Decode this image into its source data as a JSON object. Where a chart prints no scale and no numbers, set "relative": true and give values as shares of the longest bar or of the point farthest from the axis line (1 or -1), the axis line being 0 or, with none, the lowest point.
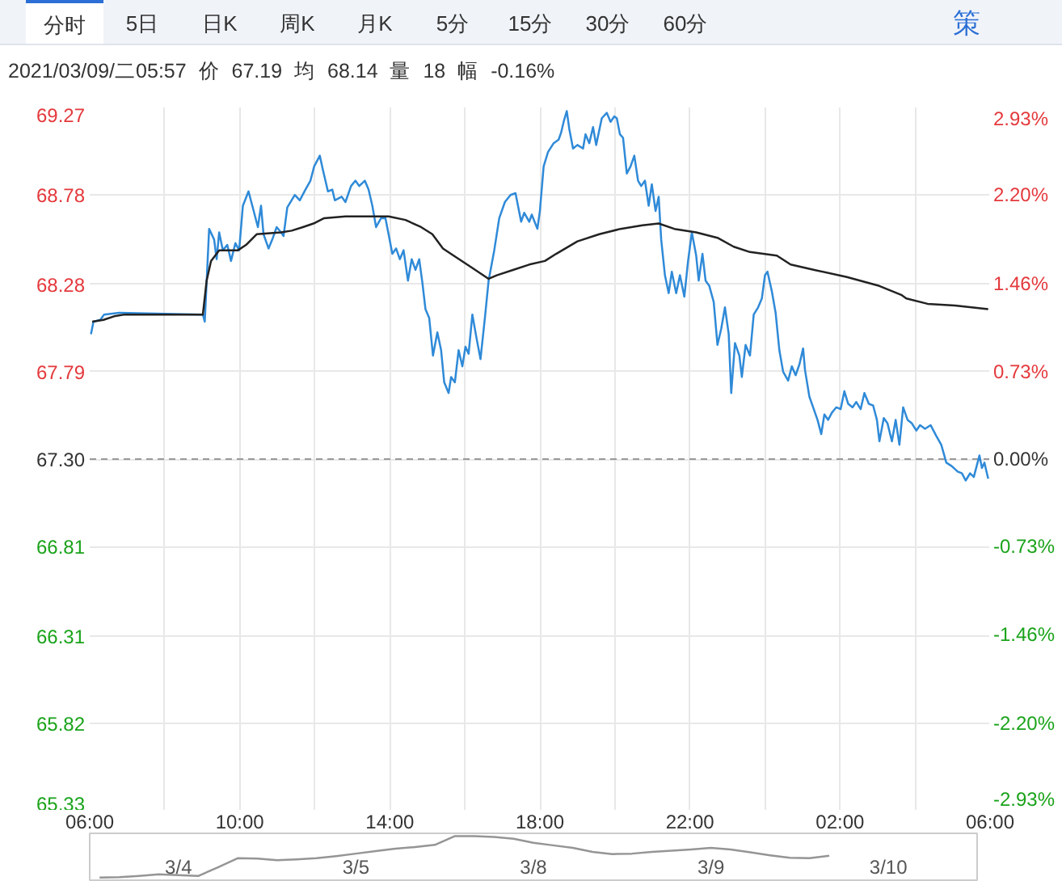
{
  "chart_data": [
    {
      "type": "line",
      "title": "2021/03/09/二05:57 价 67.19 均 68.14 量 18 幅 -0.16%",
      "annotations": [
        "分时",
        "5日",
        "日K",
        "周K",
        "月K",
        "5分",
        "15分",
        "30分",
        "60分",
        "策"
      ],
      "xlim": [
        "2021-03-08T06:00",
        "2021-03-09T06:00"
      ],
      "xticks": [
        {
          "value": "2021-03-08T06:00",
          "label": "06:00"
        },
        {
          "value": "2021-03-08T08:00",
          "label": null
        },
        {
          "value": "2021-03-08T10:00",
          "label": "10:00"
        },
        {
          "value": "2021-03-08T12:00",
          "label": null
        },
        {
          "value": "2021-03-08T14:00",
          "label": "14:00"
        },
        {
          "value": "2021-03-08T16:00",
          "label": null
        },
        {
          "value": "2021-03-08T18:00",
          "label": "18:00"
        },
        {
          "value": "2021-03-08T20:00",
          "label": null
        },
        {
          "value": "2021-03-08T22:00",
          "label": "22:00"
        },
        {
          "value": "2021-03-09T00:00",
          "label": null
        },
        {
          "value": "2021-03-09T02:00",
          "label": "02:00"
        },
        {
          "value": "2021-03-09T04:00",
          "label": null
        },
        {
          "value": "2021-03-09T06:00",
          "label": "06:00"
        }
      ],
      "ylim": [
        65.33,
        69.27
      ],
      "yticks": [
        65.33,
        65.82,
        66.31,
        66.81,
        {
          "value": 67.3,
          "label": "67.30"
        },
        67.79,
        68.28,
        68.78,
        69.27
      ],
      "y2lim": [
        -2.93,
        2.93
      ],
      "y2ticks": [
        {
          "value": -2.93,
          "label": "-2.93%"
        },
        {
          "value": -2.2,
          "label": "-2.20%"
        },
        {
          "value": -1.46,
          "label": "-1.46%"
        },
        {
          "value": -0.73,
          "label": "-0.73%"
        },
        {
          "value": 0,
          "label": "0.00%"
        },
        {
          "value": 0.73,
          "label": "0.73%"
        },
        {
          "value": 1.46,
          "label": "1.46%"
        },
        {
          "value": 2.2,
          "label": "2.20%"
        },
        {
          "value": 2.93,
          "label": "2.93%"
        }
      ],
      "grid": true,
      "ref_lines": [
        {
          "axis": "y",
          "value": 67.3,
          "color": "#999999",
          "line_style": "dashed"
        }
      ],
      "series": [
        {
          "color": "#2f8ad8",
          "x": [
            "2021-03-08T06:02",
            "2021-03-08T06:06",
            "2021-03-08T06:17",
            "2021-03-08T06:23",
            "2021-03-08T06:47",
            "2021-03-08T09:01",
            "2021-03-08T09:04",
            "2021-03-08T09:11",
            "2021-03-08T09:19",
            "2021-03-08T09:23",
            "2021-03-08T09:27",
            "2021-03-08T09:33",
            "2021-03-08T09:40",
            "2021-03-08T09:46",
            "2021-03-08T09:53",
            "2021-03-08T09:59",
            "2021-03-08T10:05",
            "2021-03-08T10:14",
            "2021-03-08T10:23",
            "2021-03-08T10:29",
            "2021-03-08T10:34",
            "2021-03-08T10:38",
            "2021-03-08T10:46",
            "2021-03-08T10:53",
            "2021-03-08T10:59",
            "2021-03-08T11:06",
            "2021-03-08T11:10",
            "2021-03-08T11:16",
            "2021-03-08T11:28",
            "2021-03-08T11:36",
            "2021-03-08T11:45",
            "2021-03-08T11:53",
            "2021-03-08T11:59",
            "2021-03-08T12:08",
            "2021-03-08T12:13",
            "2021-03-08T12:21",
            "2021-03-08T12:28",
            "2021-03-08T12:32",
            "2021-03-08T12:43",
            "2021-03-08T12:49",
            "2021-03-08T12:58",
            "2021-03-08T13:05",
            "2021-03-08T13:11",
            "2021-03-08T13:20",
            "2021-03-08T13:26",
            "2021-03-08T13:32",
            "2021-03-08T13:38",
            "2021-03-08T13:46",
            "2021-03-08T13:53",
            "2021-03-08T13:58",
            "2021-03-08T14:04",
            "2021-03-08T14:10",
            "2021-03-08T14:16",
            "2021-03-08T14:22",
            "2021-03-08T14:29",
            "2021-03-08T14:35",
            "2021-03-08T14:41",
            "2021-03-08T14:47",
            "2021-03-08T14:52",
            "2021-03-08T14:57",
            "2021-03-08T15:03",
            "2021-03-08T15:09",
            "2021-03-08T15:16",
            "2021-03-08T15:22",
            "2021-03-08T15:27",
            "2021-03-08T15:34",
            "2021-03-08T15:38",
            "2021-03-08T15:44",
            "2021-03-08T15:50",
            "2021-03-08T15:56",
            "2021-03-08T16:01",
            "2021-03-08T16:06",
            "2021-03-08T16:12",
            "2021-03-08T16:18",
            "2021-03-08T16:25",
            "2021-03-08T16:32",
            "2021-03-08T16:38",
            "2021-03-08T16:47",
            "2021-03-08T16:55",
            "2021-03-08T17:04",
            "2021-03-08T17:13",
            "2021-03-08T17:21",
            "2021-03-08T17:30",
            "2021-03-08T17:35",
            "2021-03-08T17:43",
            "2021-03-08T17:47",
            "2021-03-08T17:56",
            "2021-03-08T18:00",
            "2021-03-08T18:06",
            "2021-03-08T18:13",
            "2021-03-08T18:22",
            "2021-03-08T18:30",
            "2021-03-08T18:34",
            "2021-03-08T18:38",
            "2021-03-08T18:43",
            "2021-03-08T18:47",
            "2021-03-08T18:53",
            "2021-03-08T19:00",
            "2021-03-08T19:09",
            "2021-03-08T19:13",
            "2021-03-08T19:19",
            "2021-03-08T19:25",
            "2021-03-08T19:30",
            "2021-03-08T19:39",
            "2021-03-08T19:47",
            "2021-03-08T19:53",
            "2021-03-08T19:59",
            "2021-03-08T20:03",
            "2021-03-08T20:08",
            "2021-03-08T20:13",
            "2021-03-08T20:19",
            "2021-03-08T20:25",
            "2021-03-08T20:31",
            "2021-03-08T20:37",
            "2021-03-08T20:42",
            "2021-03-08T20:48",
            "2021-03-08T20:54",
            "2021-03-08T20:59",
            "2021-03-08T21:05",
            "2021-03-08T21:10",
            "2021-03-08T21:14",
            "2021-03-08T21:20",
            "2021-03-08T21:26",
            "2021-03-08T21:31",
            "2021-03-08T21:38",
            "2021-03-08T21:44",
            "2021-03-08T21:51",
            "2021-03-08T21:57",
            "2021-03-08T22:03",
            "2021-03-08T22:10",
            "2021-03-08T22:14",
            "2021-03-08T22:20",
            "2021-03-08T22:25",
            "2021-03-08T22:31",
            "2021-03-08T22:38",
            "2021-03-08T22:44",
            "2021-03-08T22:50",
            "2021-03-08T22:56",
            "2021-03-08T23:02",
            "2021-03-08T23:06",
            "2021-03-08T23:12",
            "2021-03-08T23:19",
            "2021-03-08T23:23",
            "2021-03-08T23:29",
            "2021-03-08T23:36",
            "2021-03-08T23:42",
            "2021-03-08T23:49",
            "2021-03-08T23:55",
            "2021-03-09T00:00",
            "2021-03-09T00:04",
            "2021-03-09T00:11",
            "2021-03-09T00:17",
            "2021-03-09T00:23",
            "2021-03-09T00:29",
            "2021-03-09T00:37",
            "2021-03-09T00:43",
            "2021-03-09T00:49",
            "2021-03-09T00:55",
            "2021-03-09T01:01",
            "2021-03-09T01:04",
            "2021-03-09T01:11",
            "2021-03-09T01:18",
            "2021-03-09T01:24",
            "2021-03-09T01:30",
            "2021-03-09T01:35",
            "2021-03-09T01:41",
            "2021-03-09T01:47",
            "2021-03-09T01:54",
            "2021-03-09T02:01",
            "2021-03-09T02:07",
            "2021-03-09T02:13",
            "2021-03-09T02:20",
            "2021-03-09T02:26",
            "2021-03-09T02:33",
            "2021-03-09T02:39",
            "2021-03-09T02:46",
            "2021-03-09T02:53",
            "2021-03-09T02:59",
            "2021-03-09T03:03",
            "2021-03-09T03:10",
            "2021-03-09T03:16",
            "2021-03-09T03:23",
            "2021-03-09T03:29",
            "2021-03-09T03:35",
            "2021-03-09T03:41",
            "2021-03-09T03:48",
            "2021-03-09T03:55",
            "2021-03-09T04:02",
            "2021-03-09T04:08",
            "2021-03-09T04:16",
            "2021-03-09T04:25",
            "2021-03-09T04:34",
            "2021-03-09T04:42",
            "2021-03-09T04:50",
            "2021-03-09T04:59",
            "2021-03-09T05:08",
            "2021-03-09T05:15",
            "2021-03-09T05:21",
            "2021-03-09T05:28",
            "2021-03-09T05:34",
            "2021-03-09T05:43",
            "2021-03-09T05:47",
            "2021-03-09T05:51",
            "2021-03-09T05:55",
            "2021-03-09T05:57"
          ],
          "values": [
            68.0,
            68.07,
            68.08,
            68.11,
            68.12,
            68.11,
            68.07,
            68.59,
            68.53,
            68.42,
            68.57,
            68.47,
            68.5,
            68.41,
            68.51,
            68.47,
            68.72,
            68.8,
            68.68,
            68.6,
            68.72,
            68.56,
            68.48,
            68.54,
            68.6,
            68.57,
            68.55,
            68.71,
            68.78,
            68.75,
            68.81,
            68.86,
            68.94,
            69.0,
            68.92,
            68.8,
            68.81,
            68.75,
            68.77,
            68.74,
            68.83,
            68.86,
            68.83,
            68.86,
            68.81,
            68.72,
            68.6,
            68.65,
            68.65,
            68.56,
            68.45,
            68.48,
            68.42,
            68.47,
            68.3,
            68.42,
            68.36,
            68.42,
            68.29,
            68.14,
            68.09,
            67.88,
            68.01,
            67.91,
            67.73,
            67.67,
            67.76,
            67.73,
            67.91,
            67.82,
            67.93,
            67.89,
            68.11,
            67.99,
            67.86,
            68.09,
            68.3,
            68.47,
            68.65,
            68.74,
            68.78,
            68.79,
            68.63,
            68.68,
            68.63,
            68.67,
            68.59,
            68.69,
            68.94,
            69.02,
            69.07,
            69.09,
            69.13,
            69.19,
            69.25,
            69.15,
            69.04,
            69.06,
            69.04,
            69.12,
            69.07,
            69.16,
            69.06,
            69.21,
            69.24,
            69.19,
            69.22,
            69.21,
            69.12,
            69.1,
            68.9,
            68.94,
            69.0,
            68.86,
            68.83,
            68.86,
            68.72,
            68.84,
            68.69,
            68.77,
            68.53,
            68.33,
            68.23,
            68.35,
            68.23,
            68.33,
            68.21,
            68.41,
            68.57,
            68.44,
            68.3,
            68.45,
            68.3,
            68.27,
            68.18,
            67.94,
            68.03,
            68.15,
            68.0,
            67.67,
            67.95,
            67.88,
            67.76,
            67.94,
            67.88,
            68.11,
            68.15,
            68.2,
            68.33,
            68.35,
            68.24,
            68.12,
            67.91,
            67.79,
            67.74,
            67.82,
            67.77,
            67.83,
            67.92,
            67.8,
            67.65,
            67.58,
            67.52,
            67.44,
            67.55,
            67.52,
            67.56,
            67.59,
            67.58,
            67.68,
            67.61,
            67.59,
            67.62,
            67.58,
            67.67,
            67.61,
            67.6,
            67.52,
            67.4,
            67.53,
            67.5,
            67.4,
            67.52,
            67.38,
            67.59,
            67.52,
            67.5,
            67.46,
            67.49,
            67.47,
            67.49,
            67.43,
            67.38,
            67.28,
            67.26,
            67.23,
            67.22,
            67.18,
            67.22,
            67.2,
            67.32,
            67.25,
            67.28,
            67.22,
            67.19
          ]
        },
        {
          "color": "#222222",
          "x": [
            "2021-03-08T06:04",
            "2021-03-08T06:22",
            "2021-03-08T06:39",
            "2021-03-08T06:56",
            "2021-03-08T09:01",
            "2021-03-08T09:07",
            "2021-03-08T09:14",
            "2021-03-08T09:27",
            "2021-03-08T09:57",
            "2021-03-08T10:10",
            "2021-03-08T10:27",
            "2021-03-08T11:06",
            "2021-03-08T11:23",
            "2021-03-08T11:41",
            "2021-03-08T11:58",
            "2021-03-08T12:15",
            "2021-03-08T12:49",
            "2021-03-08T13:41",
            "2021-03-08T13:58",
            "2021-03-08T14:25",
            "2021-03-08T14:50",
            "2021-03-08T15:08",
            "2021-03-08T15:25",
            "2021-03-08T15:42",
            "2021-03-08T16:08",
            "2021-03-08T16:38",
            "2021-03-08T16:51",
            "2021-03-08T17:17",
            "2021-03-08T17:43",
            "2021-03-08T18:08",
            "2021-03-08T18:26",
            "2021-03-08T19:00",
            "2021-03-08T19:35",
            "2021-03-08T20:09",
            "2021-03-08T20:44",
            "2021-03-08T21:10",
            "2021-03-08T21:35",
            "2021-03-08T22:10",
            "2021-03-08T22:44",
            "2021-03-08T23:10",
            "2021-03-08T23:36",
            "2021-03-09T00:19",
            "2021-03-09T00:41",
            "2021-03-09T01:19",
            "2021-03-09T02:11",
            "2021-03-09T03:03",
            "2021-03-09T03:38",
            "2021-03-09T03:46",
            "2021-03-09T04:20",
            "2021-03-09T05:04",
            "2021-03-09T05:57"
          ],
          "values": [
            68.07,
            68.08,
            68.1,
            68.11,
            68.11,
            68.3,
            68.41,
            68.47,
            68.47,
            68.5,
            68.56,
            68.57,
            68.58,
            68.6,
            68.62,
            68.65,
            68.66,
            68.66,
            68.66,
            68.64,
            68.6,
            68.56,
            68.48,
            68.44,
            68.38,
            68.31,
            68.33,
            68.36,
            68.39,
            68.41,
            68.45,
            68.52,
            68.56,
            68.59,
            68.61,
            68.62,
            68.59,
            68.57,
            68.54,
            68.49,
            68.46,
            68.44,
            68.39,
            68.36,
            68.32,
            68.27,
            68.22,
            68.2,
            68.17,
            68.16,
            68.14
          ]
        }
      ]
    },
    {
      "type": "line",
      "relative": true,
      "tick_labels": "x",
      "categories": [
        null,
        null,
        null,
        null,
        "3/4",
        null,
        null,
        null,
        null,
        null,
        null,
        null,
        null,
        "3/5",
        null,
        null,
        null,
        null,
        null,
        null,
        null,
        null,
        "3/8",
        null,
        null,
        null,
        null,
        null,
        null,
        null,
        null,
        "3/9",
        null,
        null,
        null,
        null,
        null,
        null,
        null,
        null,
        "3/10",
        null,
        null,
        null,
        null
      ],
      "series": [
        {
          "color": "#959595",
          "values": [
            0,
            0.01,
            0.04,
            0.08,
            0.06,
            0.04,
            0.25,
            0.47,
            0.46,
            0.42,
            0.44,
            0.47,
            0.52,
            0.58,
            0.64,
            0.7,
            0.74,
            0.79,
            1,
            1,
            0.98,
            0.94,
            0.84,
            0.78,
            0.72,
            0.62,
            0.57,
            0.58,
            0.62,
            0.65,
            0.68,
            0.72,
            0.68,
            0.61,
            0.54,
            0.48,
            0.47,
            0.53,
            null,
            null,
            null,
            null,
            null,
            null,
            null
          ]
        }
      ]
    }
  ]
}
